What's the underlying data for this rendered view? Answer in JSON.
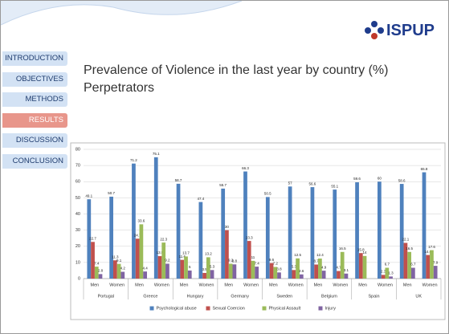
{
  "logo": "ISPUP",
  "nav": [
    "INTRODUCTION",
    "OBJECTIVES",
    "METHODS",
    "RESULTS",
    "DISCUSSION",
    "CONCLUSION"
  ],
  "active_nav": 3,
  "title": "Prevalence of Violence in the last year by country (%)",
  "subtitle": "Perpetrators",
  "chart_data": {
    "type": "bar",
    "categories": [
      "Men",
      "Women",
      "Men",
      "Women",
      "Men",
      "Women",
      "Men",
      "Women",
      "Men",
      "Women",
      "Men",
      "Women",
      "Men",
      "Women",
      "Men",
      "Women"
    ],
    "groups": [
      "Portugal",
      "Greece",
      "Hungary",
      "Germany",
      "Sweden",
      "Belgium",
      "Spain",
      "UK"
    ],
    "series": [
      {
        "name": "Psychological abuse",
        "color": "#4f81bd",
        "values": [
          49.1,
          50.7,
          71.2,
          75.1,
          58.7,
          47.4,
          55.7,
          66.3,
          50.5,
          57,
          56.6,
          55.1,
          59.6,
          60,
          58.6,
          65.8
        ]
      },
      {
        "name": "Sexual Coercion",
        "color": "#c0504d",
        "values": [
          22.7,
          11.3,
          24.7,
          13.9,
          11.6,
          3.5,
          30,
          23.3,
          9.6,
          5.3,
          8.7,
          4.7,
          15.8,
          2.3,
          22.1,
          14.6
        ]
      },
      {
        "name": "Physical Assault",
        "color": "#9bbb59",
        "values": [
          7.4,
          9.1,
          33.6,
          22.3,
          13.7,
          13.2,
          9.2,
          11,
          7.2,
          12.5,
          12.4,
          16.5,
          14,
          6.7,
          16.5,
          17.6
        ]
      },
      {
        "name": "Injury",
        "color": "#8064a2",
        "values": [
          2.8,
          4.2,
          4.4,
          9.2,
          5,
          5.3,
          8.8,
          7.4,
          3.8,
          2.6,
          4.9,
          3.1,
          null,
          1.3,
          6.7,
          7.9
        ]
      }
    ],
    "ylim": [
      0,
      80
    ],
    "yticks": [
      0,
      10,
      20,
      30,
      40,
      50,
      60,
      70,
      80
    ],
    "grid": true,
    "legend": "bottom"
  }
}
